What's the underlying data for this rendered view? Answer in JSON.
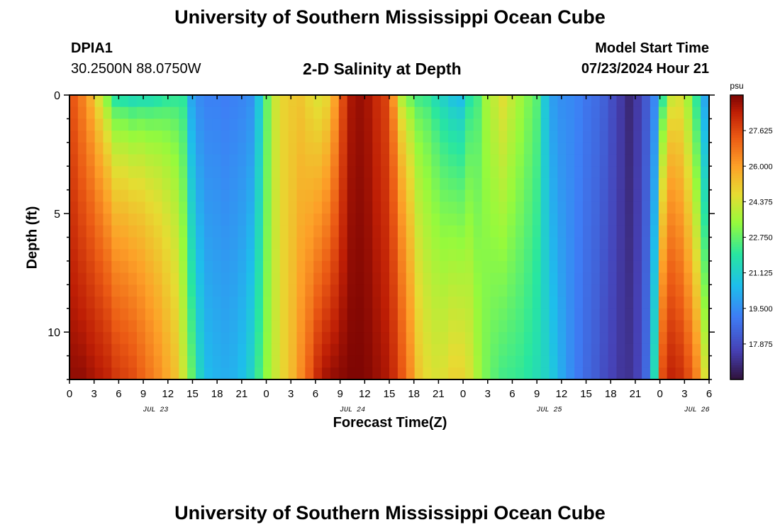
{
  "header": {
    "title": "University of Southern Mississippi Ocean Cube",
    "station_id": "DPIA1",
    "station_coords": "30.2500N  88.0750W",
    "start_label": "Model Start Time",
    "start_value": "07/23/2024 Hour 21"
  },
  "footer": {
    "title": "University of Southern Mississippi Ocean Cube"
  },
  "chart_data": {
    "type": "heatmap",
    "title": "2-D Salinity at Depth",
    "xlabel": "Forecast Time(Z)",
    "ylabel": "Depth (ft)",
    "x_ticks": [
      "0",
      "3",
      "6",
      "9",
      "12",
      "15",
      "18",
      "21",
      "0",
      "3",
      "6",
      "9",
      "12",
      "15",
      "18",
      "21",
      "0",
      "3",
      "6",
      "9",
      "12",
      "15",
      "18",
      "21",
      "0",
      "3",
      "6"
    ],
    "day_labels": [
      "JUL 23",
      "JUL 24",
      "JUL 25",
      "JUL 26"
    ],
    "day_label_hours": [
      10.5,
      34.5,
      58.5,
      76.5
    ],
    "x_range_hours": [
      0,
      78
    ],
    "y_ticks": [
      0,
      5,
      10
    ],
    "y_range_ft": [
      0,
      12
    ],
    "colorbar": {
      "unit": "psu",
      "min": 16.25,
      "max": 29.25,
      "ticks": [
        "27.625",
        "26.000",
        "24.375",
        "22.750",
        "21.125",
        "19.500",
        "17.875"
      ]
    },
    "depth_rows_ft": [
      0.25,
      0.75,
      1.25,
      1.75,
      2.25,
      2.75,
      3.25,
      3.75,
      4.25,
      4.75,
      5.25,
      5.75,
      6.25,
      6.75,
      7.25,
      7.75,
      8.25,
      8.75,
      9.25,
      9.75,
      10.25,
      10.75,
      11.25,
      11.75
    ],
    "surface_salinity_psu": [
      27.3,
      26.6,
      25.6,
      24.2,
      22.6,
      21.0,
      20.6,
      20.4,
      20.3,
      20.4,
      20.7,
      21.3,
      21.6,
      21.9,
      20.0,
      19.4,
      19.2,
      19.2,
      19.1,
      19.2,
      19.3,
      19.5,
      20.8,
      22.8,
      24.3,
      24.9,
      25.1,
      25.2,
      24.8,
      24.5,
      24.8,
      25.9,
      27.6,
      28.7,
      28.9,
      28.7,
      28.2,
      27.8,
      25.9,
      23.0,
      22.1,
      21.8,
      21.8,
      21.2,
      20.9,
      20.4,
      20.2,
      21.6,
      22.3,
      23.6,
      24.1,
      24.6,
      24.1,
      23.6,
      23.1,
      22.6,
      20.9,
      19.8,
      19.5,
      19.4,
      19.2,
      18.9,
      18.7,
      18.4,
      17.9,
      17.4,
      16.9,
      17.4,
      18.2,
      19.3,
      21.6,
      24.0,
      24.4,
      23.6,
      22.0,
      20.0
    ],
    "bottom_salinity_psu": [
      29.0,
      29.0,
      28.8,
      28.6,
      28.4,
      28.0,
      27.8,
      27.6,
      27.2,
      26.8,
      26.4,
      25.9,
      25.4,
      24.3,
      22.8,
      21.3,
      20.5,
      20.3,
      20.2,
      20.3,
      20.6,
      21.2,
      22.3,
      23.4,
      24.2,
      24.9,
      25.5,
      26.4,
      27.3,
      28.3,
      28.8,
      29.0,
      29.1,
      29.2,
      29.2,
      29.1,
      28.9,
      28.7,
      28.2,
      27.4,
      26.4,
      25.2,
      24.7,
      24.5,
      24.6,
      24.9,
      24.9,
      24.5,
      23.7,
      23.0,
      22.6,
      22.3,
      22.2,
      22.1,
      21.9,
      21.6,
      21.3,
      20.8,
      20.1,
      19.5,
      19.0,
      18.6,
      18.3,
      17.9,
      17.6,
      17.3,
      17.2,
      17.6,
      18.6,
      21.6,
      27.6,
      28.4,
      28.2,
      27.6,
      26.6,
      24.6
    ],
    "bottom_profile_exponent": [
      1.0,
      1.0,
      0.8,
      0.65,
      0.55,
      0.5,
      0.45,
      0.45,
      0.4,
      0.4,
      0.4,
      0.45,
      0.5,
      0.7,
      0.9,
      1.0,
      1.0,
      1.0,
      1.0,
      1.0,
      1.0,
      1.0,
      1.0,
      1.0,
      1.0,
      1.0,
      1.0,
      1.0,
      1.0,
      1.0,
      1.0,
      1.0,
      1.0,
      1.0,
      1.0,
      1.0,
      1.0,
      1.0,
      0.5,
      0.4,
      0.4,
      0.45,
      0.5,
      0.5,
      0.6,
      0.6,
      0.6,
      0.6,
      0.7,
      0.8,
      1.0,
      1.0,
      1.0,
      1.0,
      1.0,
      1.0,
      1.0,
      1.0,
      1.0,
      1.0,
      1.0,
      1.0,
      1.0,
      1.0,
      1.0,
      1.0,
      1.0,
      1.0,
      1.0,
      1.0,
      0.6,
      0.7,
      0.9,
      1.0,
      1.0,
      1.0
    ]
  }
}
